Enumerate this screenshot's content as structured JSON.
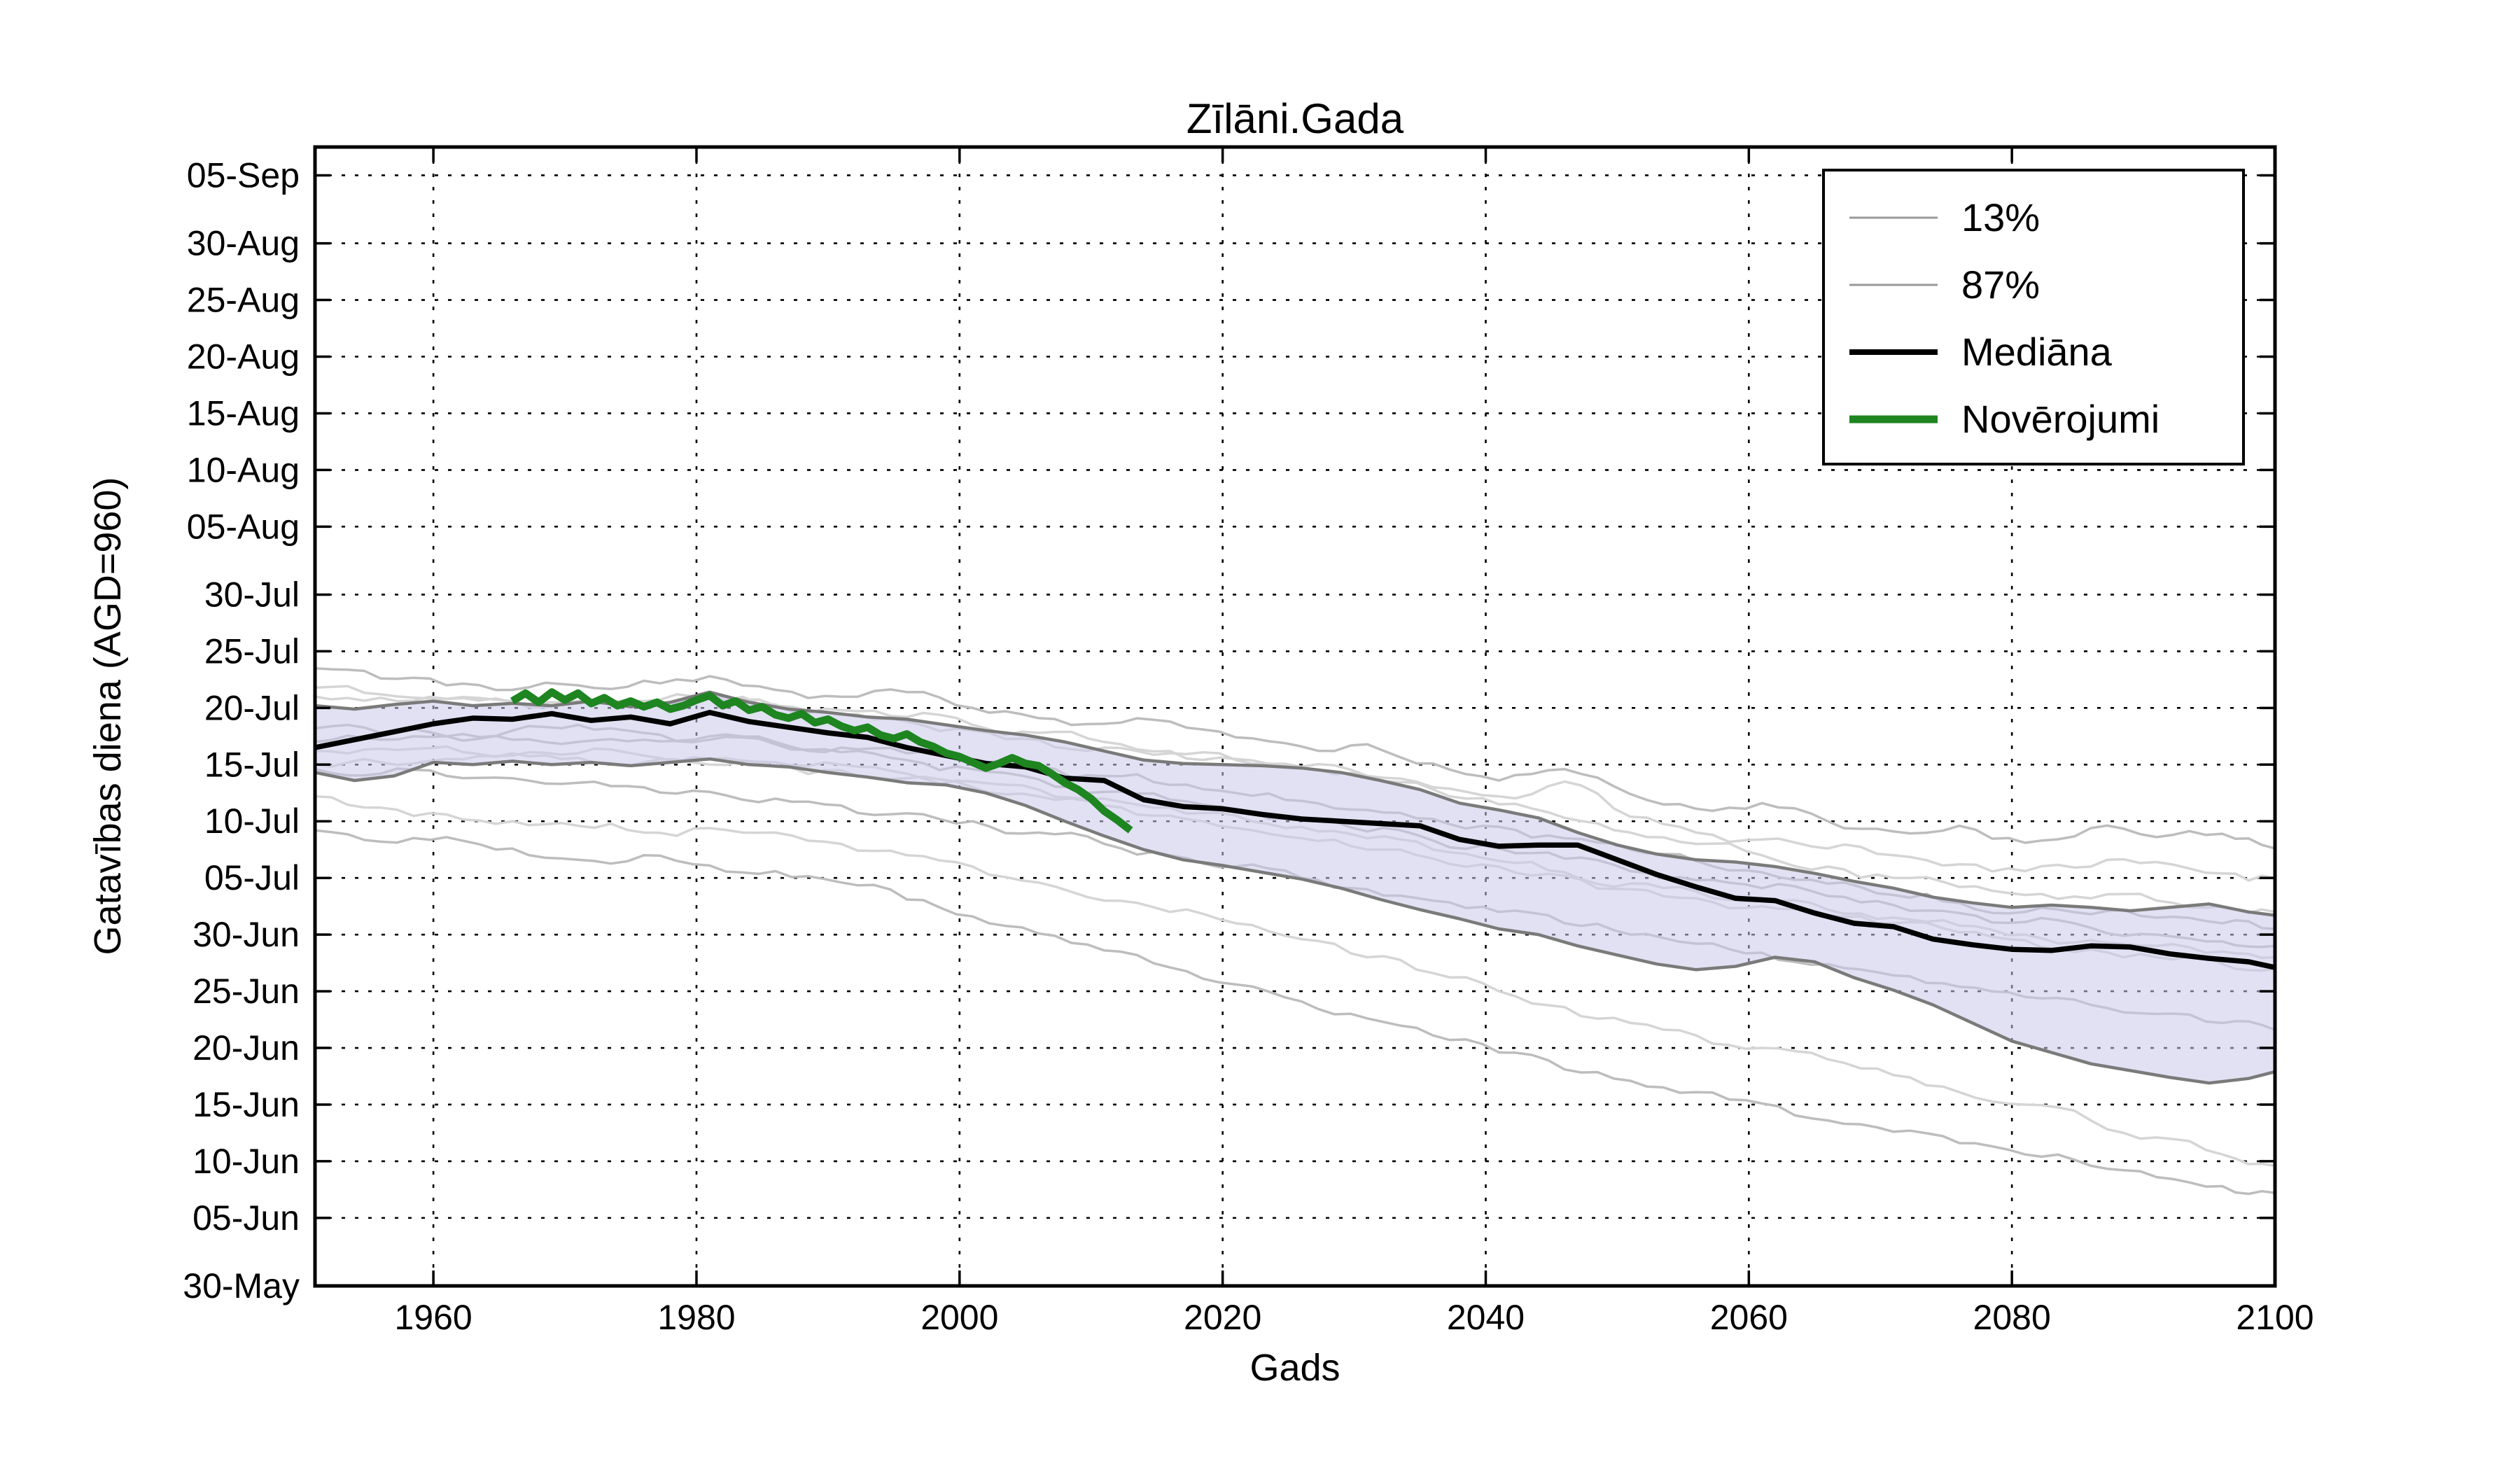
{
  "chart_data": {
    "type": "line",
    "title": "Zīlāni.Gada",
    "xlabel": "Gads",
    "ylabel": "Gatavības diena (AGD=960)",
    "x_domain": [
      1951,
      2100
    ],
    "y_domain_day_of_year": [
      150,
      250.5
    ],
    "grid": "dotted",
    "legend_position": "upper-right",
    "colors": {
      "median": "#000000",
      "observed": "#1e8520",
      "quantile_edge": "#7a7a7a",
      "band_fill": "rgba(200,200,234,0.55)",
      "ensemble_a": "#bdbdbd",
      "ensemble_b": "#d5d5d5",
      "grid": "#000000",
      "frame": "#000000"
    },
    "x_ticks": [
      1960,
      1980,
      2000,
      2020,
      2040,
      2060,
      2080,
      2100
    ],
    "y_ticks": [
      {
        "day": 150,
        "label": "30-May"
      },
      {
        "day": 156,
        "label": "05-Jun"
      },
      {
        "day": 161,
        "label": "10-Jun"
      },
      {
        "day": 166,
        "label": "15-Jun"
      },
      {
        "day": 171,
        "label": "20-Jun"
      },
      {
        "day": 176,
        "label": "25-Jun"
      },
      {
        "day": 181,
        "label": "30-Jun"
      },
      {
        "day": 186,
        "label": "05-Jul"
      },
      {
        "day": 191,
        "label": "10-Jul"
      },
      {
        "day": 196,
        "label": "15-Jul"
      },
      {
        "day": 201,
        "label": "20-Jul"
      },
      {
        "day": 206,
        "label": "25-Jul"
      },
      {
        "day": 211,
        "label": "30-Jul"
      },
      {
        "day": 217,
        "label": "05-Aug"
      },
      {
        "day": 222,
        "label": "10-Aug"
      },
      {
        "day": 227,
        "label": "15-Aug"
      },
      {
        "day": 232,
        "label": "20-Aug"
      },
      {
        "day": 237,
        "label": "25-Aug"
      },
      {
        "day": 242,
        "label": "30-Aug"
      },
      {
        "day": 248,
        "label": "05-Sep"
      }
    ],
    "legend": [
      {
        "label": "13%",
        "color": "#999999",
        "width": 3
      },
      {
        "label": "87%",
        "color": "#999999",
        "width": 3
      },
      {
        "label": "Mediāna",
        "color": "#000000",
        "width": 8
      },
      {
        "label": "Novērojumi",
        "color": "#1e8520",
        "width": 11
      }
    ],
    "quantile_years": [
      1951,
      1954,
      1957,
      1960,
      1963,
      1966,
      1969,
      1972,
      1975,
      1978,
      1981,
      1984,
      1987,
      1990,
      1993,
      1996,
      1999,
      2002,
      2005,
      2008,
      2011,
      2014,
      2017,
      2020,
      2023,
      2026,
      2029,
      2032,
      2035,
      2038,
      2041,
      2044,
      2047,
      2050,
      2053,
      2056,
      2059,
      2062,
      2065,
      2068,
      2071,
      2074,
      2077,
      2080,
      2083,
      2086,
      2089,
      2092,
      2095,
      2098,
      2100
    ],
    "series": {
      "median": {
        "name": "Mediāna",
        "days": [
          197.5,
          198.2,
          198.9,
          199.6,
          200.1,
          200.0,
          200.5,
          199.9,
          200.2,
          199.6,
          200.6,
          199.8,
          199.3,
          198.8,
          198.4,
          197.5,
          196.8,
          196.1,
          195.8,
          194.8,
          194.6,
          192.9,
          192.3,
          192.1,
          191.6,
          191.2,
          191.0,
          190.8,
          190.6,
          189.4,
          188.8,
          188.9,
          188.9,
          187.6,
          186.3,
          185.2,
          184.2,
          184.0,
          182.9,
          182.0,
          181.7,
          180.6,
          180.1,
          179.7,
          179.6,
          180.0,
          179.9,
          179.3,
          178.9,
          178.6,
          178.1
        ]
      },
      "p87": {
        "name": "87%",
        "days": [
          201.2,
          200.9,
          201.3,
          201.6,
          201.2,
          201.4,
          201.2,
          201.6,
          201.1,
          201.5,
          202.4,
          201.5,
          200.9,
          200.6,
          200.2,
          200.0,
          199.5,
          199.0,
          198.6,
          198.0,
          197.2,
          196.4,
          196.1,
          196.0,
          195.9,
          195.7,
          195.3,
          194.6,
          193.8,
          192.6,
          192.0,
          191.3,
          190.0,
          188.9,
          188.1,
          187.6,
          187.4,
          187.0,
          186.4,
          185.7,
          185.1,
          184.3,
          183.8,
          183.4,
          183.6,
          183.4,
          183.1,
          183.4,
          183.7,
          183.0,
          182.7
        ]
      },
      "p13": {
        "name": "13%",
        "days": [
          195.3,
          194.6,
          195.0,
          196.2,
          196.0,
          196.3,
          196.0,
          196.2,
          195.9,
          196.2,
          196.5,
          196.0,
          195.8,
          195.3,
          194.9,
          194.4,
          194.2,
          193.5,
          192.4,
          191.0,
          189.7,
          188.5,
          187.6,
          187.1,
          186.5,
          185.9,
          185.1,
          184.1,
          183.2,
          182.4,
          181.5,
          181.0,
          180.0,
          179.2,
          178.4,
          177.9,
          178.2,
          179.0,
          178.6,
          177.2,
          176.1,
          174.8,
          173.2,
          171.6,
          170.6,
          169.6,
          169.0,
          168.4,
          167.9,
          168.3,
          168.9
        ]
      },
      "observed": {
        "name": "Novērojumi",
        "years": [
          1966,
          1967,
          1968,
          1969,
          1970,
          1971,
          1972,
          1973,
          1974,
          1975,
          1976,
          1977,
          1978,
          1979,
          1980,
          1981,
          1982,
          1983,
          1984,
          1985,
          1986,
          1987,
          1988,
          1989,
          1990,
          1991,
          1992,
          1993,
          1994,
          1995,
          1996,
          1997,
          1998,
          1999,
          2000,
          2001,
          2002,
          2003,
          2004,
          2005,
          2006,
          2007,
          2008,
          2009,
          2010,
          2011,
          2012,
          2013
        ],
        "days": [
          201.6,
          202.3,
          201.5,
          202.4,
          201.7,
          202.3,
          201.4,
          201.9,
          201.2,
          201.6,
          201.1,
          201.5,
          200.9,
          201.2,
          201.7,
          202.1,
          201.2,
          201.6,
          200.8,
          201.1,
          200.4,
          200.1,
          200.5,
          199.7,
          200.0,
          199.4,
          199.0,
          199.3,
          198.6,
          198.3,
          198.7,
          198.0,
          197.6,
          197.0,
          196.7,
          196.2,
          195.7,
          196.1,
          196.6,
          196.1,
          195.9,
          195.2,
          194.4,
          193.8,
          193.0,
          191.9,
          191.1,
          190.2
        ]
      },
      "ensemble": {
        "years": [
          1951,
          1956,
          1961,
          1966,
          1971,
          1976,
          1981,
          1986,
          1991,
          1996,
          2001,
          2006,
          2011,
          2016,
          2021,
          2026,
          2031,
          2036,
          2041,
          2046,
          2051,
          2056,
          2061,
          2066,
          2071,
          2076,
          2081,
          2086,
          2091,
          2096,
          2100
        ],
        "lines": [
          [
            204.5,
            203.6,
            203.0,
            202.6,
            203.0,
            203.4,
            203.8,
            202.6,
            202.0,
            202.4,
            201.0,
            200.1,
            199.6,
            199.8,
            198.4,
            197.6,
            197.8,
            196.1,
            194.6,
            195.6,
            193.4,
            192.1,
            192.6,
            191.0,
            190.1,
            190.6,
            189.1,
            190.4,
            189.6,
            189.9,
            188.6
          ],
          [
            202.8,
            202.2,
            201.8,
            201.5,
            201.6,
            201.4,
            201.9,
            201.2,
            200.4,
            199.8,
            199.0,
            198.2,
            197.5,
            197.0,
            196.4,
            195.7,
            195.0,
            194.0,
            193.2,
            194.5,
            191.4,
            190.0,
            189.4,
            188.6,
            188.0,
            187.2,
            186.6,
            187.0,
            187.4,
            186.4,
            186.0
          ],
          [
            199.2,
            198.8,
            198.5,
            199.0,
            199.5,
            198.8,
            198.2,
            197.8,
            197.1,
            196.4,
            195.6,
            194.7,
            193.6,
            192.9,
            192.1,
            191.2,
            190.1,
            189.3,
            188.6,
            187.7,
            186.6,
            185.8,
            185.1,
            184.4,
            183.6,
            182.9,
            182.1,
            181.6,
            181.0,
            180.4,
            180.0
          ],
          [
            197.2,
            197.4,
            197.6,
            197.0,
            196.6,
            196.2,
            196.0,
            195.8,
            195.5,
            194.8,
            194.0,
            193.2,
            192.4,
            191.5,
            190.4,
            189.5,
            188.5,
            187.7,
            187.0,
            186.2,
            185.0,
            184.2,
            183.5,
            182.7,
            182.0,
            181.2,
            180.5,
            179.7,
            179.0,
            178.4,
            178.0
          ],
          [
            195.6,
            195.2,
            195.0,
            194.8,
            194.4,
            194.0,
            193.6,
            193.0,
            192.4,
            191.7,
            191.0,
            190.0,
            189.0,
            188.0,
            187.0,
            186.0,
            185.0,
            184.0,
            183.0,
            182.0,
            181.0,
            180.2,
            179.4,
            178.4,
            177.4,
            176.4,
            175.5,
            174.8,
            174.0,
            173.2,
            172.6
          ],
          [
            193.2,
            192.2,
            191.6,
            191.0,
            190.6,
            190.0,
            190.4,
            190.0,
            189.0,
            188.0,
            187.0,
            185.6,
            184.0,
            183.0,
            182.0,
            180.6,
            179.0,
            177.6,
            176.0,
            174.6,
            173.2,
            172.1,
            171.0,
            170.0,
            168.6,
            167.1,
            166.0,
            164.6,
            163.1,
            161.6,
            160.6
          ],
          [
            190.2,
            189.2,
            189.6,
            188.6,
            187.6,
            188.0,
            187.1,
            186.6,
            185.6,
            184.1,
            182.6,
            181.1,
            179.6,
            178.1,
            176.6,
            175.1,
            173.6,
            172.1,
            170.6,
            169.1,
            168.1,
            167.1,
            166.1,
            164.6,
            163.6,
            162.6,
            161.6,
            160.6,
            159.6,
            158.8,
            158.2
          ],
          [
            202.0,
            201.9,
            201.8,
            201.6,
            201.5,
            201.6,
            201.8,
            201.3,
            200.8,
            200.2,
            199.5,
            198.8,
            198.0,
            197.2,
            196.5,
            195.8,
            195.0,
            193.8,
            192.5,
            191.3,
            190.0,
            189.0,
            188.0,
            187.0,
            186.0,
            185.2,
            184.5,
            184.2,
            184.0,
            183.5,
            183.0
          ],
          [
            198.0,
            198.2,
            198.5,
            198.2,
            198.0,
            198.2,
            198.5,
            198.0,
            197.5,
            197.0,
            196.5,
            195.8,
            195.0,
            194.2,
            193.5,
            192.8,
            192.0,
            191.2,
            190.5,
            189.5,
            188.5,
            187.5,
            186.5,
            185.5,
            184.5,
            183.8,
            183.0,
            182.8,
            182.5,
            182.0,
            181.5
          ],
          [
            196.0,
            196.2,
            196.5,
            196.8,
            197.0,
            196.8,
            196.5,
            196.2,
            196.0,
            195.2,
            194.5,
            193.8,
            193.0,
            192.2,
            191.5,
            190.5,
            189.5,
            188.5,
            187.5,
            186.5,
            185.5,
            184.8,
            184.0,
            183.2,
            182.5,
            181.8,
            181.0,
            180.5,
            180.0,
            179.5,
            179.0
          ]
        ]
      }
    }
  }
}
